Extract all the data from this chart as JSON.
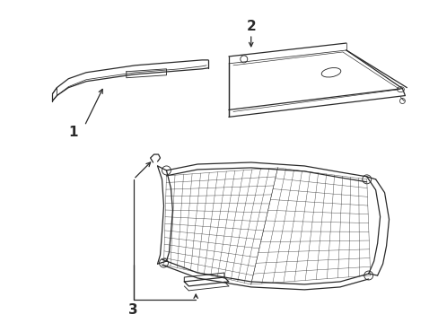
{
  "bg_color": "#ffffff",
  "line_color": "#2a2a2a",
  "lw": 0.9,
  "figsize": [
    4.89,
    3.6
  ],
  "dpi": 100
}
